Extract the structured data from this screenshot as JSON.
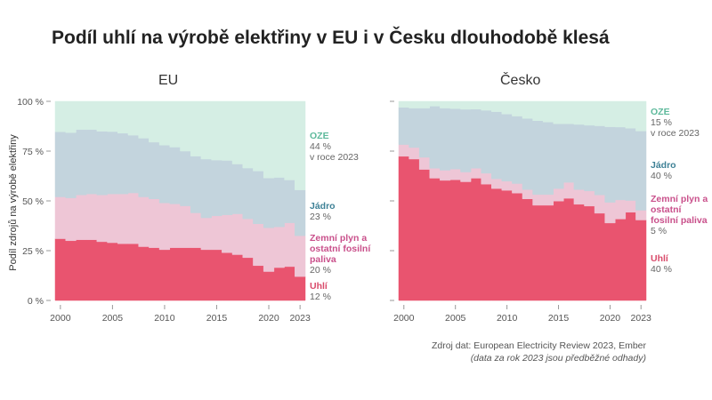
{
  "title": "Podíl uhlí na výrobě elektřiny v EU i v Česku dlouhodobě klesá",
  "source_line1": "Zdroj dat: European Electricity Review 2023, Ember",
  "source_line2": "(data za rok 2023 jsou předběžné odhady)",
  "colors": {
    "coal": "#e9546f",
    "gas": "#eec6d6",
    "nuclear": "#c3d4dd",
    "oze": "#d5eee4"
  },
  "chart_data": [
    {
      "type": "area",
      "stacked": true,
      "step": true,
      "title": "EU",
      "ylabel": "Podíl zdrojů na výrobě elektřiny",
      "ylim": [
        0,
        100
      ],
      "yticks": [
        "0 %",
        "25 %",
        "50 %",
        "75 %",
        "100 %"
      ],
      "xticks": [
        "2000",
        "2005",
        "2010",
        "2015",
        "2020",
        "2023"
      ],
      "x": [
        2000,
        2001,
        2002,
        2003,
        2004,
        2005,
        2006,
        2007,
        2008,
        2009,
        2010,
        2011,
        2012,
        2013,
        2014,
        2015,
        2016,
        2017,
        2018,
        2019,
        2020,
        2021,
        2022,
        2023
      ],
      "series": [
        {
          "name": "Uhlí",
          "end_label": "12 %",
          "values": [
            31,
            30,
            30.5,
            30.5,
            29.5,
            29,
            28.5,
            28.5,
            27,
            26.5,
            25.5,
            26.5,
            26.5,
            26.5,
            25.5,
            25.5,
            24,
            23,
            21.5,
            17.5,
            14.5,
            16.5,
            17,
            12
          ]
        },
        {
          "name": "Zemní plyn a ostatní fosilní paliva",
          "end_label": "20 %",
          "values": [
            21,
            21.5,
            22.5,
            23,
            23.5,
            24.5,
            25,
            25.5,
            25,
            24.5,
            23.5,
            22,
            21,
            17.5,
            16,
            17,
            19,
            20.5,
            19.5,
            21,
            22,
            20.5,
            22,
            20.5
          ]
        },
        {
          "name": "Jádro",
          "end_label": "23 %",
          "values": [
            32.7,
            32.8,
            32.8,
            32.3,
            32,
            31.3,
            30.5,
            29,
            29.5,
            28.5,
            29,
            28.5,
            27.5,
            28.5,
            29.5,
            28,
            27.3,
            25,
            25.5,
            26.5,
            25,
            24.8,
            21.5,
            23
          ]
        },
        {
          "name": "OZE",
          "end_label": "44 %",
          "end_note": "v roce 2023",
          "values": [
            15.3,
            15.7,
            14.2,
            14.2,
            15,
            15.2,
            16,
            17,
            18.5,
            20.5,
            22,
            23,
            25,
            27.5,
            29,
            29.5,
            29.7,
            31.5,
            33.5,
            35,
            38.5,
            38.2,
            39.5,
            44.5
          ]
        }
      ]
    },
    {
      "type": "area",
      "stacked": true,
      "step": true,
      "title": "Česko",
      "ylim": [
        0,
        100
      ],
      "xticks": [
        "2000",
        "2005",
        "2010",
        "2015",
        "2020",
        "2023"
      ],
      "x": [
        2000,
        2001,
        2002,
        2003,
        2004,
        2005,
        2006,
        2007,
        2008,
        2009,
        2010,
        2011,
        2012,
        2013,
        2014,
        2015,
        2016,
        2017,
        2018,
        2019,
        2020,
        2021,
        2022,
        2023
      ],
      "series": [
        {
          "name": "Uhlí",
          "end_label": "40 %",
          "values": [
            72.4,
            71,
            65.8,
            61.4,
            60.3,
            60.6,
            59.6,
            61.4,
            58.4,
            56.2,
            55.3,
            53.9,
            51,
            47.8,
            47.8,
            49.9,
            51.3,
            48.3,
            47.4,
            43.8,
            38.9,
            40.9,
            44.3,
            40.4
          ]
        },
        {
          "name": "Zemní plyn a ostatní fosilní paliva",
          "end_label": "5 %",
          "values": [
            5.9,
            5.8,
            6.1,
            5,
            5.1,
            5.4,
            4.9,
            5,
            5.5,
            4.9,
            4.6,
            4.8,
            4.7,
            5.4,
            5.4,
            6.3,
            8,
            7.4,
            7.6,
            9.2,
            10.4,
            9.6,
            5.9,
            4.9
          ]
        },
        {
          "name": "Jádro",
          "end_label": "40 %",
          "values": [
            18.7,
            19.8,
            24.7,
            31.2,
            31.2,
            30.3,
            31.5,
            29.7,
            31.6,
            33.7,
            33.7,
            33.9,
            35.7,
            37.1,
            36.4,
            32.5,
            29.4,
            32.7,
            33,
            34.7,
            37.9,
            36.6,
            36.3,
            39.8
          ]
        },
        {
          "name": "OZE",
          "end_label": "15 %",
          "end_note": "v roce 2023",
          "values": [
            3,
            3.4,
            3.4,
            2.4,
            3.4,
            3.7,
            4,
            3.9,
            4.5,
            5.2,
            6.4,
            7.4,
            8.6,
            9.7,
            10.4,
            11.3,
            11.3,
            11.6,
            12,
            12.3,
            12.8,
            12.9,
            13.5,
            14.9
          ]
        }
      ]
    }
  ]
}
